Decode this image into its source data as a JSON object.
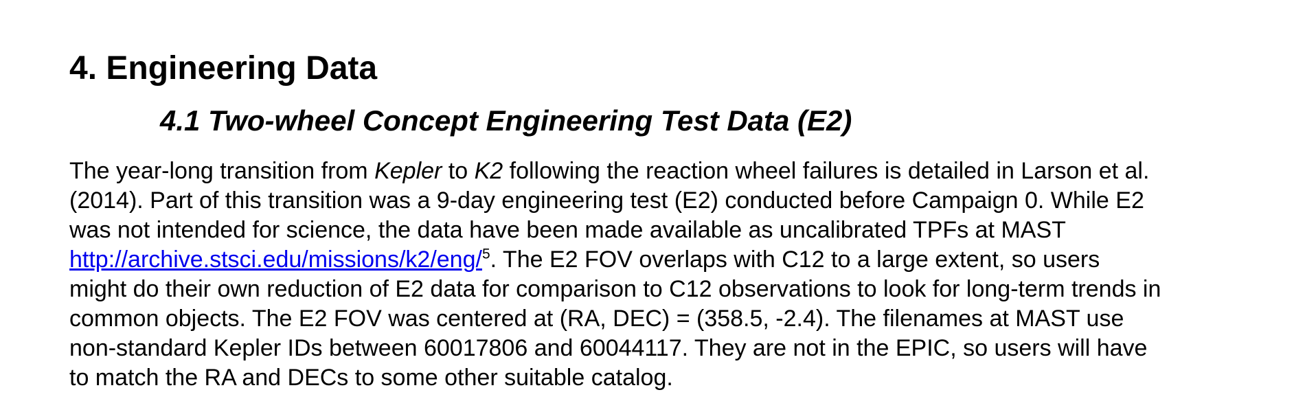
{
  "section": {
    "heading": "4. Engineering Data",
    "subheading": "4.1 Two-wheel Concept Engineering Test Data (E2)"
  },
  "paragraph": {
    "line1": {
      "a": "The year-long transition from ",
      "kepler": "Kepler",
      "b": " to ",
      "k2": "K2",
      "c": " following the reaction wheel failures is detailed in Larson et al."
    },
    "line2": "(2014).  Part of this transition was a 9-day engineering test (E2) conducted before Campaign 0.  While E2",
    "line3": "was not intended for science, the data have been made available as uncalibrated TPFs at MAST",
    "line4": {
      "link": "http://archive.stsci.edu/missions/k2/eng/",
      "footnote": "5",
      "rest": ".  The E2 FOV overlaps with C12 to a large extent, so users"
    },
    "line5": "might do their own reduction of E2 data for comparison to C12 observations to look for long-term trends in",
    "line6": "common objects.  The E2 FOV was centered at (RA, DEC) = (358.5, -2.4). The filenames at MAST use",
    "line7": "non-standard Kepler IDs between 60017806 and 60044117.  They are not in the EPIC, so users will have",
    "line8": "to match the RA and DECs to some other suitable catalog."
  }
}
